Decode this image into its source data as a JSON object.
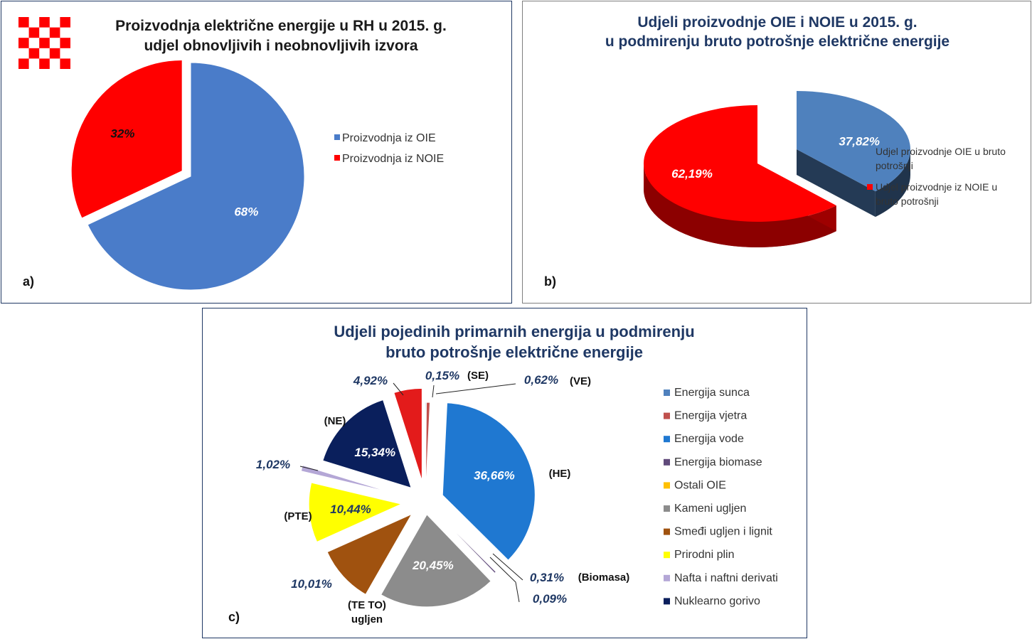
{
  "chart_data": [
    {
      "type": "pie",
      "panel_label": "a)",
      "title": "Proizvodnja električne energije u RH u 2015. g. udjel obnovljivih i neobnovljivih izvora",
      "title_lines": [
        "Proizvodnja električne energije u RH u 2015. g.",
        "udjel obnovljivih i neobnovljivih izvora"
      ],
      "categories": [
        "Proizvodnja iz OIE",
        "Proizvodnja iz NOIE"
      ],
      "values": [
        68,
        32
      ],
      "labels": [
        "68%",
        "32%"
      ],
      "colors": [
        "#4a7cc9",
        "#ff0000"
      ],
      "legend_position": "right"
    },
    {
      "type": "pie",
      "panel_label": "b)",
      "title": "Udjeli proizvodnje OIE i NOIE u 2015. g. u podmirenju bruto potrošnje električne energije",
      "title_lines": [
        "Udjeli proizvodnje OIE  i NOIE  u 2015. g.",
        "u podmirenju bruto potrošnje električne energije"
      ],
      "categories": [
        "Udjel proizvodnje OIE u bruto potrošnji",
        "Udjel proizvodnje iz NOIE u bruto potrošnji"
      ],
      "legend_lines": [
        [
          "Udjel proizvodnje OIE u bruto",
          "potrošnji"
        ],
        [
          "Udjel proizvodnje iz NOIE u",
          "bruto potrošnji"
        ]
      ],
      "values": [
        37.82,
        62.19
      ],
      "labels": [
        "37,82%",
        "62,19%"
      ],
      "colors": [
        "#4f81bd",
        "#ff0000"
      ],
      "legend_position": "right"
    },
    {
      "type": "pie",
      "panel_label": "c)",
      "title": "Udjeli pojedinih primarnih energija u podmirenju bruto potrošnje električne energije",
      "title_lines": [
        "Udjeli pojedinih primarnih energija u podmirenju",
        "bruto potrošnje električne energije"
      ],
      "categories": [
        "Energija sunca",
        "Energija vjetra",
        "Energija vode",
        "Energija biomase",
        "Ostali OIE",
        "Kameni ugljen",
        "Smeđi ugljen i lignit",
        "Prirodni plin",
        "Nafta i naftni derivati",
        "Nuklearno gorivo"
      ],
      "values": [
        0.15,
        0.62,
        36.66,
        0.31,
        0.09,
        20.45,
        10.01,
        10.44,
        1.02,
        15.34
      ],
      "labels": [
        "0,15%",
        "0,62%",
        "36,66%",
        "0,31%",
        "0,09%",
        "20,45%",
        "10,01%",
        "10,44%",
        "1,02%",
        "15,34%"
      ],
      "tags": [
        "(SE)",
        "(VE)",
        "(HE)",
        "(Biomasa)",
        "",
        "",
        "",
        "(PTE)",
        "",
        "(NE)"
      ],
      "extra_slice": {
        "value": 4.92,
        "label": "4,92%",
        "color": "#e31b1b"
      },
      "group_tag_lines": [
        "(TE TO)",
        "ugljen"
      ],
      "colors": [
        "#4f81bd",
        "#c0504d",
        "#1f78d1",
        "#604a7b",
        "#ffc000",
        "#8c8c8c",
        "#a0520f",
        "#ffff00",
        "#b4a7d6",
        "#0a1f5c"
      ],
      "legend_position": "right"
    }
  ]
}
